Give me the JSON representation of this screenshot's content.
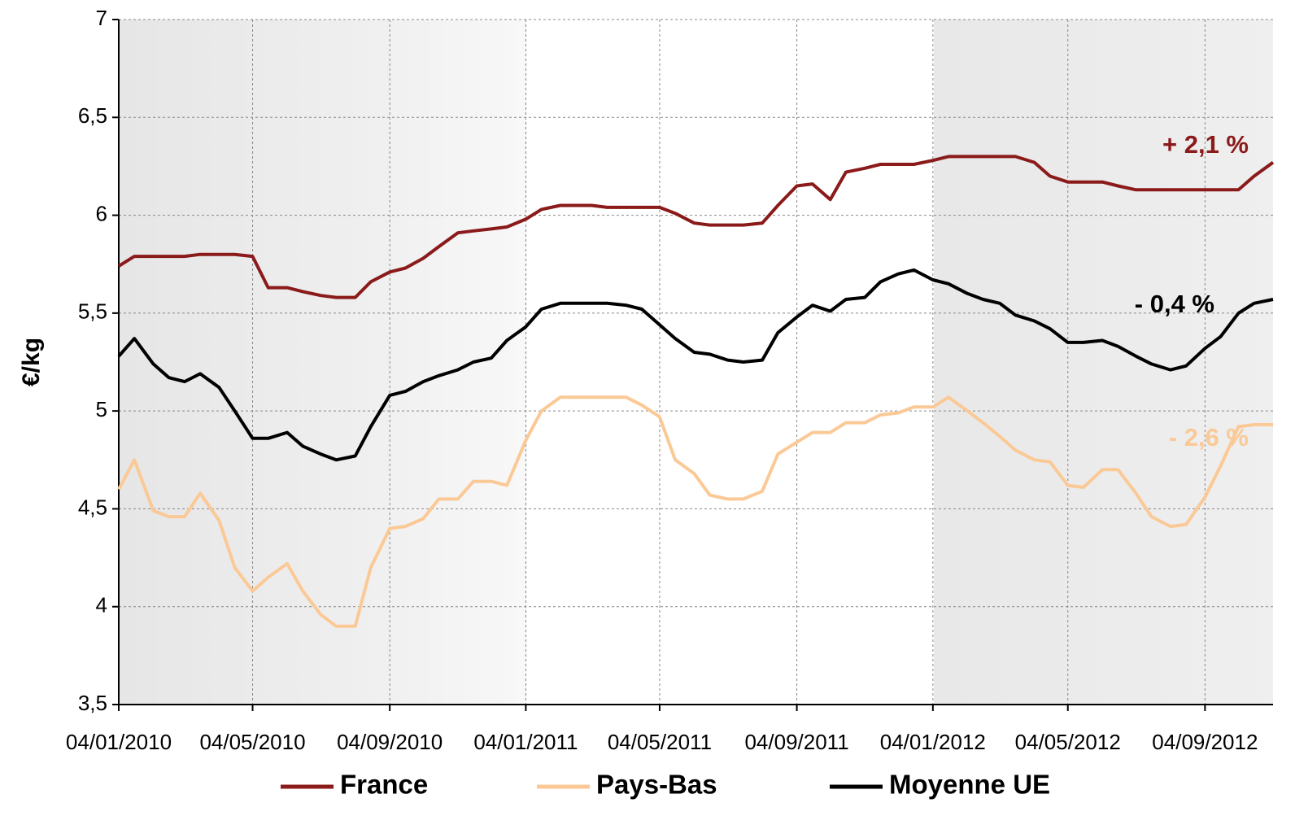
{
  "chart_data": {
    "type": "line",
    "ylabel": "€/kg",
    "x": [
      "04/01/2010",
      "18/01/2010",
      "04/02/2010",
      "18/02/2010",
      "04/03/2010",
      "18/03/2010",
      "04/04/2010",
      "18/04/2010",
      "04/05/2010",
      "18/05/2010",
      "04/06/2010",
      "18/06/2010",
      "04/07/2010",
      "18/07/2010",
      "04/08/2010",
      "18/08/2010",
      "04/09/2010",
      "18/09/2010",
      "04/10/2010",
      "18/10/2010",
      "04/11/2010",
      "18/11/2010",
      "04/12/2010",
      "18/12/2010",
      "04/01/2011",
      "18/01/2011",
      "04/02/2011",
      "18/02/2011",
      "04/03/2011",
      "18/03/2011",
      "04/04/2011",
      "18/04/2011",
      "04/05/2011",
      "18/05/2011",
      "04/06/2011",
      "18/06/2011",
      "04/07/2011",
      "18/07/2011",
      "04/08/2011",
      "18/08/2011",
      "04/09/2011",
      "18/09/2011",
      "04/10/2011",
      "18/10/2011",
      "04/11/2011",
      "18/11/2011",
      "04/12/2011",
      "18/12/2011",
      "04/01/2012",
      "18/01/2012",
      "04/02/2012",
      "18/02/2012",
      "04/03/2012",
      "18/03/2012",
      "04/04/2012",
      "18/04/2012",
      "04/05/2012",
      "18/05/2012",
      "04/06/2012",
      "18/06/2012",
      "04/07/2012",
      "18/07/2012",
      "04/08/2012",
      "18/08/2012",
      "04/09/2012",
      "18/09/2012",
      "04/10/2012",
      "18/10/2012",
      "04/11/2012"
    ],
    "series": [
      {
        "name": "France",
        "color": "#8b1a1a",
        "annotation": "+ 2,1 %",
        "values": [
          5.74,
          5.79,
          5.79,
          5.79,
          5.79,
          5.8,
          5.8,
          5.8,
          5.79,
          5.63,
          5.63,
          5.61,
          5.59,
          5.58,
          5.58,
          5.66,
          5.71,
          5.73,
          5.78,
          5.84,
          5.91,
          5.92,
          5.93,
          5.94,
          5.98,
          6.03,
          6.05,
          6.05,
          6.05,
          6.04,
          6.04,
          6.04,
          6.04,
          6.01,
          5.96,
          5.95,
          5.95,
          5.95,
          5.96,
          6.05,
          6.15,
          6.16,
          6.08,
          6.22,
          6.24,
          6.26,
          6.26,
          6.26,
          6.28,
          6.3,
          6.3,
          6.3,
          6.3,
          6.3,
          6.27,
          6.2,
          6.17,
          6.17,
          6.17,
          6.15,
          6.13,
          6.13,
          6.13,
          6.13,
          6.13,
          6.13,
          6.13,
          6.2,
          6.27
        ]
      },
      {
        "name": "Pays-Bas",
        "color": "#fbc996",
        "annotation": "- 2,6 %",
        "values": [
          4.6,
          4.75,
          4.49,
          4.46,
          4.46,
          4.58,
          4.44,
          4.2,
          4.08,
          4.15,
          4.22,
          4.08,
          3.96,
          3.9,
          3.9,
          4.2,
          4.4,
          4.41,
          4.45,
          4.55,
          4.55,
          4.64,
          4.64,
          4.62,
          4.85,
          5.0,
          5.07,
          5.07,
          5.07,
          5.07,
          5.07,
          5.03,
          4.97,
          4.75,
          4.68,
          4.57,
          4.55,
          4.55,
          4.59,
          4.78,
          4.84,
          4.89,
          4.89,
          4.94,
          4.94,
          4.98,
          4.99,
          5.02,
          5.02,
          5.07,
          5.0,
          4.94,
          4.87,
          4.8,
          4.75,
          4.74,
          4.62,
          4.61,
          4.7,
          4.7,
          4.58,
          4.46,
          4.41,
          4.42,
          4.56,
          4.72,
          4.92,
          4.93,
          4.93
        ]
      },
      {
        "name": "Moyenne UE",
        "color": "#000000",
        "annotation": "- 0,4 %",
        "values": [
          5.28,
          5.37,
          5.24,
          5.17,
          5.15,
          5.19,
          5.12,
          5.0,
          4.86,
          4.86,
          4.89,
          4.82,
          4.78,
          4.75,
          4.77,
          4.92,
          5.08,
          5.1,
          5.15,
          5.18,
          5.21,
          5.25,
          5.27,
          5.36,
          5.43,
          5.52,
          5.55,
          5.55,
          5.55,
          5.55,
          5.54,
          5.52,
          5.44,
          5.37,
          5.3,
          5.29,
          5.26,
          5.25,
          5.26,
          5.4,
          5.48,
          5.54,
          5.51,
          5.57,
          5.58,
          5.66,
          5.7,
          5.72,
          5.67,
          5.65,
          5.6,
          5.57,
          5.55,
          5.49,
          5.46,
          5.42,
          5.35,
          5.35,
          5.36,
          5.33,
          5.28,
          5.24,
          5.21,
          5.23,
          5.32,
          5.38,
          5.5,
          5.55,
          5.57
        ]
      }
    ],
    "xlim": [
      "04/01/2010",
      "04/11/2012"
    ],
    "xticks": [
      "04/01/2010",
      "04/05/2010",
      "04/09/2010",
      "04/01/2011",
      "04/05/2011",
      "04/09/2011",
      "04/01/2012",
      "04/05/2012",
      "04/09/2012"
    ],
    "ylim": [
      3.5,
      7
    ],
    "yticks": [
      {
        "value": 3.5,
        "label": "3,5"
      },
      4,
      {
        "value": 4.5,
        "label": "4,5"
      },
      5,
      {
        "value": 5.5,
        "label": "5,5"
      },
      6,
      {
        "value": 6.5,
        "label": "6,5"
      },
      7
    ],
    "grid": true,
    "legend": "bottom"
  }
}
